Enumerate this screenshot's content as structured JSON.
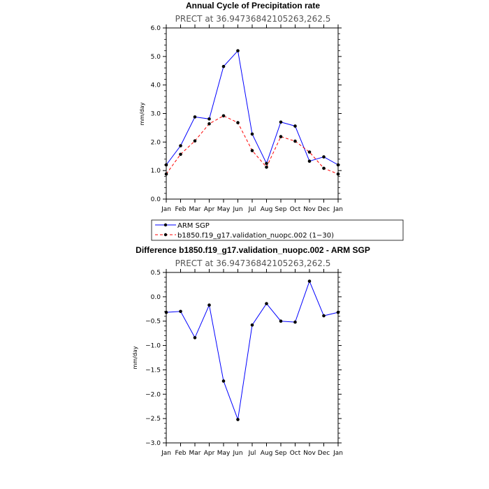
{
  "chart_data": [
    {
      "type": "line",
      "title": "Annual Cycle of Precipitation rate",
      "subtitle": "PRECT at 36.94736842105263,262.5",
      "ylabel": "mm/day",
      "xlabel": "",
      "categories": [
        "Jan",
        "Feb",
        "Mar",
        "Apr",
        "May",
        "Jun",
        "Jul",
        "Aug",
        "Sep",
        "Oct",
        "Nov",
        "Dec",
        "Jan"
      ],
      "ylim": [
        0,
        6
      ],
      "yticks": [
        "0.0",
        "1.0",
        "2.0",
        "3.0",
        "4.0",
        "5.0",
        "6.0"
      ],
      "series": [
        {
          "name": "ARM SGP",
          "color": "#0000ff",
          "dash": "solid",
          "values": [
            1.2,
            1.87,
            2.88,
            2.81,
            4.65,
            5.2,
            2.28,
            1.25,
            2.7,
            2.56,
            1.33,
            1.48,
            1.2
          ]
        },
        {
          "name": "b1850.f19_g17.validation_nuopc.002 (1−30)",
          "color": "#ff0000",
          "dash": "dashed",
          "values": [
            0.88,
            1.57,
            2.04,
            2.64,
            2.92,
            2.68,
            1.7,
            1.12,
            2.19,
            2.03,
            1.65,
            1.08,
            0.88
          ]
        }
      ],
      "legend": "below"
    },
    {
      "type": "line",
      "title": "Difference b1850.f19_g17.validation_nuopc.002 - ARM SGP",
      "subtitle": "PRECT at 36.94736842105263,262.5",
      "ylabel": "mm/day",
      "xlabel": "",
      "categories": [
        "Jan",
        "Feb",
        "Mar",
        "Apr",
        "May",
        "Jun",
        "Jul",
        "Aug",
        "Sep",
        "Oct",
        "Nov",
        "Dec",
        "Jan"
      ],
      "ylim": [
        -3.0,
        0.5
      ],
      "yticks": [
        "−3.0",
        "−2.5",
        "−2.0",
        "−1.5",
        "−1.0",
        "−0.5",
        "0.0",
        "0.5"
      ],
      "series": [
        {
          "name": "difference",
          "color": "#0000ff",
          "dash": "solid",
          "values": [
            -0.32,
            -0.3,
            -0.84,
            -0.17,
            -1.73,
            -2.52,
            -0.58,
            -0.14,
            -0.5,
            -0.52,
            0.32,
            -0.39,
            -0.32
          ]
        }
      ]
    }
  ]
}
